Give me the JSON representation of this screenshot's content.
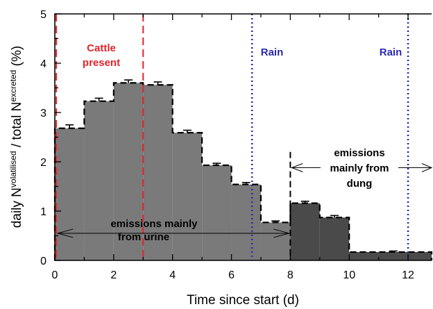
{
  "chart_data": {
    "type": "bar",
    "xlabel": "Time since start (d)",
    "ylabel_main": "daily N",
    "ylabel_sup1": "volatilised",
    "ylabel_mid": " / total N",
    "ylabel_sup2": "excreted",
    "ylabel_unit": " (%)",
    "xlim": [
      0,
      12.8
    ],
    "ylim": [
      0,
      5
    ],
    "x_ticks": [
      "0",
      "2",
      "4",
      "6",
      "8",
      "10",
      "12"
    ],
    "y_ticks": [
      "0",
      "1",
      "2",
      "3",
      "4",
      "5"
    ],
    "bars": [
      {
        "x0": 0,
        "x1": 1,
        "value": 2.68,
        "error": 0.07,
        "phase": "urine"
      },
      {
        "x0": 1,
        "x1": 2,
        "value": 3.23,
        "error": 0.06,
        "phase": "urine"
      },
      {
        "x0": 2,
        "x1": 3,
        "value": 3.6,
        "error": 0.06,
        "phase": "urine"
      },
      {
        "x0": 3,
        "x1": 4,
        "value": 3.56,
        "error": 0.06,
        "phase": "urine"
      },
      {
        "x0": 4,
        "x1": 5,
        "value": 2.59,
        "error": 0.05,
        "phase": "urine"
      },
      {
        "x0": 5,
        "x1": 6,
        "value": 1.93,
        "error": 0.04,
        "phase": "urine"
      },
      {
        "x0": 6,
        "x1": 7,
        "value": 1.54,
        "error": 0.04,
        "phase": "urine"
      },
      {
        "x0": 7,
        "x1": 8,
        "value": 0.77,
        "error": 0.03,
        "phase": "urine"
      },
      {
        "x0": 8,
        "x1": 9,
        "value": 1.16,
        "error": 0.04,
        "phase": "dung"
      },
      {
        "x0": 9,
        "x1": 10,
        "value": 0.87,
        "error": 0.04,
        "phase": "dung"
      },
      {
        "x0": 10,
        "x1": 12.8,
        "value": 0.17,
        "error": 0.02,
        "phase": "dung"
      }
    ],
    "cattle_lines": [
      0.05,
      3
    ],
    "rain_lines": [
      6.7,
      12
    ],
    "phase_divider": 8,
    "annotations": {
      "cattle_line1": "Cattle",
      "cattle_line2": "present",
      "rain1": "Rain",
      "rain2": "Rain",
      "urine_line1": "emissions mainly",
      "urine_line2": "from urine",
      "dung_line1": "emissions",
      "dung_line2": "mainly from",
      "dung_line3": "dung"
    },
    "colors": {
      "urine_fill": "#7a7a7a",
      "dung_fill": "#4a4a4a",
      "cattle": "#e8222a",
      "rain": "#2a2ab4"
    }
  }
}
